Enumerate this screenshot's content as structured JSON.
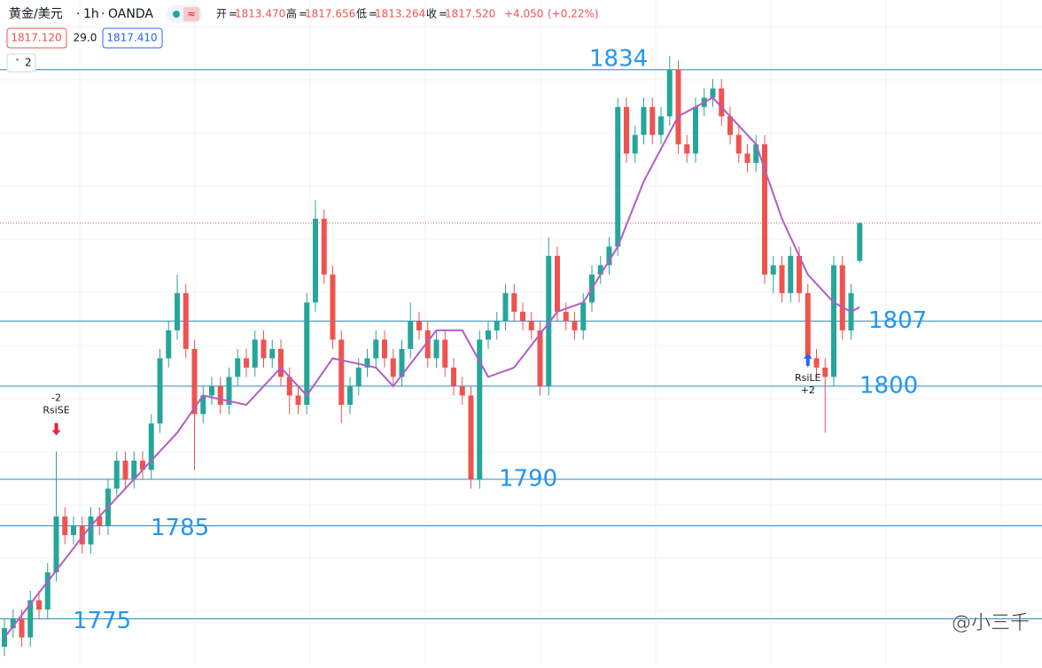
{
  "chart_data": {
    "type": "candlestick",
    "symbol": "黄金/美元",
    "interval": "1h",
    "exchange": "OANDA",
    "ohlc_labels": [
      "开",
      "高",
      "低",
      "收"
    ],
    "ohlc_values": [
      {
        "value": 1813.47,
        "label": "1813.470"
      },
      {
        "value": 1817.656,
        "label": "1817.656"
      },
      {
        "value": 1813.264,
        "label": "1813.264"
      },
      {
        "value": 1817.52,
        "label": "1817.520"
      }
    ],
    "change": {
      "value": 4.05,
      "label": "+4.050"
    },
    "change_percent": {
      "value": 0.22,
      "label": "(+0.22%)"
    },
    "bid": {
      "value": 1817.12,
      "label": "1817.120"
    },
    "spread": {
      "value": 29,
      "label": "29.0"
    },
    "ask": {
      "value": 1817.41,
      "label": "1817.410"
    },
    "indicator_count": 2,
    "up_color": "#26a69a",
    "down_color": "#ef5350",
    "level_color": "#2a8cbe",
    "level_label_color": "#2196f3",
    "ylim": [
      1770.1,
      1841.5
    ],
    "open": [
      1772,
      1774,
      1775,
      1773,
      1777,
      1776,
      1780,
      1786,
      1784,
      1785,
      1783,
      1786,
      1785,
      1789,
      1792,
      1790,
      1792,
      1791,
      1796,
      1803,
      1806,
      1810,
      1804,
      1797,
      1799,
      1800,
      1798,
      1801,
      1803,
      1802,
      1805,
      1803,
      1804,
      1801,
      1799,
      1798,
      1809,
      1818,
      1812,
      1805,
      1798,
      1800,
      1802,
      1803,
      1805,
      1803,
      1801,
      1804,
      1807,
      1806,
      1803,
      1805,
      1802,
      1800,
      1799,
      1790,
      1805,
      1806,
      1807,
      1810,
      1808,
      1807,
      1806,
      1800,
      1814,
      1808,
      1807,
      1806,
      1809,
      1812,
      1813,
      1815,
      1830,
      1825,
      1827,
      1830,
      1827,
      1829,
      1834,
      1826,
      1825,
      1830,
      1831,
      1832,
      1829,
      1827,
      1825,
      1824,
      1826,
      1812,
      1813,
      1810,
      1814,
      1810,
      1803,
      1802,
      1801,
      1813,
      1806,
      1813.47
    ],
    "high": [
      1775,
      1776,
      1776,
      1778,
      1778,
      1781,
      1793,
      1787,
      1786,
      1786,
      1787,
      1787,
      1790,
      1793,
      1793,
      1793,
      1793,
      1797,
      1804,
      1807,
      1812,
      1811,
      1805,
      1800,
      1801,
      1801,
      1802,
      1804,
      1804,
      1806,
      1806,
      1805,
      1805,
      1802,
      1800,
      1810,
      1820,
      1819,
      1813,
      1806,
      1801,
      1803,
      1804,
      1806,
      1806,
      1804,
      1805,
      1809,
      1808,
      1807,
      1806,
      1806,
      1803,
      1801,
      1800,
      1806,
      1807,
      1808,
      1811,
      1811,
      1809,
      1808,
      1807,
      1816,
      1815,
      1809,
      1808,
      1810,
      1813,
      1814,
      1816,
      1831,
      1831,
      1828,
      1831,
      1831,
      1830,
      1835.5,
      1835,
      1827,
      1831,
      1832,
      1833,
      1833,
      1830,
      1828,
      1826,
      1827,
      1827,
      1814,
      1814,
      1815,
      1815,
      1811,
      1804,
      1803,
      1814,
      1814,
      1811,
      1817.656
    ],
    "low": [
      1771,
      1773,
      1772,
      1772,
      1775,
      1775,
      1779,
      1783,
      1783,
      1782,
      1782,
      1784,
      1784,
      1788,
      1789,
      1789,
      1790,
      1790,
      1795,
      1802,
      1805,
      1803,
      1791,
      1796,
      1798,
      1797,
      1797,
      1800,
      1801,
      1801,
      1802,
      1802,
      1800,
      1797,
      1797,
      1797,
      1808,
      1811,
      1804,
      1796,
      1797,
      1799,
      1801,
      1802,
      1802,
      1800,
      1800,
      1803,
      1805,
      1802,
      1802,
      1801,
      1799,
      1798,
      1789,
      1789,
      1804,
      1805,
      1806,
      1807,
      1806,
      1805,
      1799,
      1799,
      1807,
      1806,
      1805,
      1805,
      1808,
      1811,
      1812,
      1814,
      1824,
      1824,
      1826,
      1826,
      1826,
      1828,
      1825,
      1824,
      1824,
      1829,
      1830,
      1828,
      1826,
      1824,
      1823,
      1823,
      1811,
      1810,
      1809,
      1809,
      1809,
      1802,
      1801,
      1795,
      1800,
      1805,
      1805,
      1813.264
    ],
    "close": [
      1774,
      1775,
      1773,
      1777,
      1776,
      1780,
      1786,
      1784,
      1785,
      1783,
      1786,
      1785,
      1789,
      1792,
      1790,
      1792,
      1791,
      1796,
      1803,
      1806,
      1810,
      1804,
      1797,
      1799,
      1800,
      1798,
      1801,
      1803,
      1802,
      1805,
      1803,
      1804,
      1801,
      1799,
      1798,
      1809,
      1818,
      1812,
      1805,
      1798,
      1800,
      1802,
      1803,
      1805,
      1803,
      1801,
      1804,
      1807,
      1806,
      1803,
      1805,
      1802,
      1800,
      1799,
      1790,
      1805,
      1806,
      1807,
      1810,
      1808,
      1807,
      1806,
      1800,
      1814,
      1808,
      1807,
      1806,
      1809,
      1812,
      1813,
      1815,
      1830,
      1825,
      1827,
      1830,
      1827,
      1829,
      1834,
      1826,
      1825,
      1830,
      1831,
      1832,
      1829,
      1827,
      1825,
      1824,
      1826,
      1812,
      1813,
      1810,
      1814,
      1810,
      1803,
      1802,
      1801,
      1813,
      1806,
      1810,
      1817.52
    ],
    "moving_average": {
      "color": "#b35cc7",
      "index": [
        0,
        10,
        20,
        23,
        28,
        32,
        35,
        38,
        43,
        45,
        50,
        53,
        56,
        59,
        64,
        67,
        71,
        74,
        78,
        82,
        87,
        90,
        93,
        96,
        98,
        99
      ],
      "values": [
        1773,
        1785,
        1795,
        1799,
        1798,
        1802,
        1799,
        1803,
        1802,
        1800,
        1806,
        1806,
        1801,
        1802,
        1808,
        1809,
        1815,
        1822,
        1829,
        1831,
        1826,
        1818,
        1812,
        1809,
        1808,
        1808.5
      ]
    },
    "levels": [
      1834,
      1807,
      1800,
      1790,
      1785,
      1775
    ],
    "signals": [
      {
        "index": 6,
        "count": "-2",
        "name": "RsiSE",
        "color": "#e0263a"
      },
      {
        "index": 93,
        "count": "+2",
        "name": "RsiLE",
        "color": "#2962ff"
      }
    ],
    "watermark": "@小三千"
  }
}
